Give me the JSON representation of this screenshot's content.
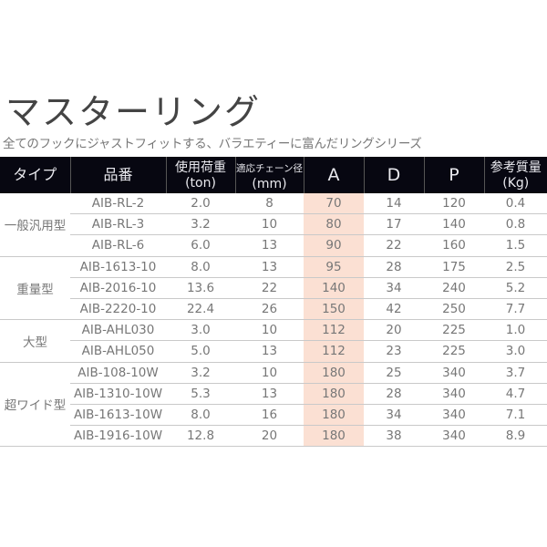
{
  "page": {
    "title": "マスターリング",
    "subtitle": "全てのフックにジャストフィットする、バラエティーに富んだリングシリーズ"
  },
  "table": {
    "headers": {
      "type": "タイプ",
      "model": "品番",
      "load_line1": "使用荷重",
      "load_line2": "(ton)",
      "chain_line1": "適応チェーン径",
      "chain_line2": "(mm)",
      "a": "A",
      "d": "D",
      "p": "P",
      "weight_line1": "参考質量",
      "weight_line2": "(Kg)"
    },
    "highlight_color": "#fbe0d3",
    "header_bg": "#070711",
    "groups": [
      {
        "type": "一般汎用型",
        "rows": [
          {
            "model": "AIB-RL-2",
            "load": "2.0",
            "chain": "8",
            "a": "70",
            "d": "14",
            "p": "120",
            "weight": "0.4"
          },
          {
            "model": "AIB-RL-3",
            "load": "3.2",
            "chain": "10",
            "a": "80",
            "d": "17",
            "p": "140",
            "weight": "0.8"
          },
          {
            "model": "AIB-RL-6",
            "load": "6.0",
            "chain": "13",
            "a": "90",
            "d": "22",
            "p": "160",
            "weight": "1.5"
          }
        ]
      },
      {
        "type": "重量型",
        "rows": [
          {
            "model": "AIB-1613-10",
            "load": "8.0",
            "chain": "13",
            "a": "95",
            "d": "28",
            "p": "175",
            "weight": "2.5"
          },
          {
            "model": "AIB-2016-10",
            "load": "13.6",
            "chain": "22",
            "a": "140",
            "d": "34",
            "p": "240",
            "weight": "5.2"
          },
          {
            "model": "AIB-2220-10",
            "load": "22.4",
            "chain": "26",
            "a": "150",
            "d": "42",
            "p": "250",
            "weight": "7.7"
          }
        ]
      },
      {
        "type": "大型",
        "rows": [
          {
            "model": "AIB-AHL030",
            "load": "3.0",
            "chain": "10",
            "a": "112",
            "d": "20",
            "p": "225",
            "weight": "1.0"
          },
          {
            "model": "AIB-AHL050",
            "load": "5.0",
            "chain": "13",
            "a": "112",
            "d": "23",
            "p": "225",
            "weight": "3.0"
          }
        ]
      },
      {
        "type": "超ワイド型",
        "rows": [
          {
            "model": "AIB-108-10W",
            "load": "3.2",
            "chain": "10",
            "a": "180",
            "d": "25",
            "p": "340",
            "weight": "3.7"
          },
          {
            "model": "AIB-1310-10W",
            "load": "5.3",
            "chain": "13",
            "a": "180",
            "d": "28",
            "p": "340",
            "weight": "4.7"
          },
          {
            "model": "AIB-1613-10W",
            "load": "8.0",
            "chain": "16",
            "a": "180",
            "d": "34",
            "p": "340",
            "weight": "7.1"
          },
          {
            "model": "AIB-1916-10W",
            "load": "12.8",
            "chain": "20",
            "a": "180",
            "d": "38",
            "p": "340",
            "weight": "8.9"
          }
        ]
      }
    ]
  }
}
